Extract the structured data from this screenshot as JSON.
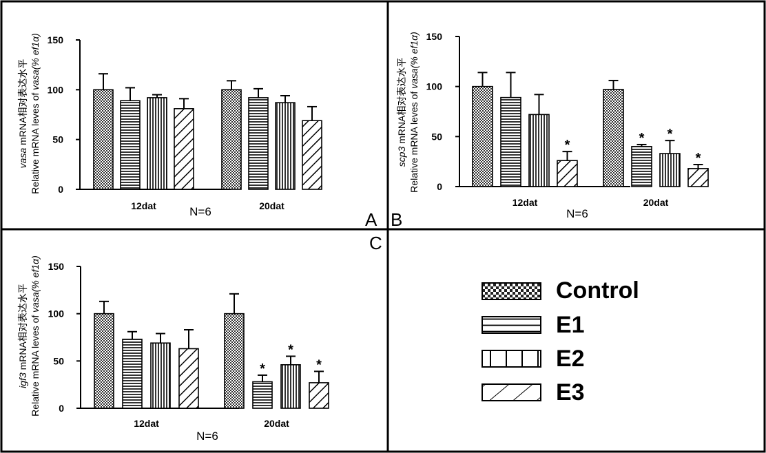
{
  "panels": [
    {
      "letter": "A",
      "chart_data": {
        "type": "bar",
        "categories": [
          "12dat",
          "20dat"
        ],
        "series": [
          {
            "name": "Control",
            "values": [
              100,
              100
            ],
            "errors": [
              16,
              9
            ]
          },
          {
            "name": "E1",
            "values": [
              89,
              92
            ],
            "errors": [
              13,
              9
            ]
          },
          {
            "name": "E2",
            "values": [
              92,
              87
            ],
            "errors": [
              3,
              7
            ]
          },
          {
            "name": "E3",
            "values": [
              81,
              69
            ],
            "errors": [
              10,
              14
            ]
          }
        ],
        "significance": [
          [
            false,
            false
          ],
          [
            false,
            false
          ],
          [
            false,
            false
          ],
          [
            false,
            false
          ]
        ],
        "ylabel_gene": "vasa",
        "ylabel_zh": "mRNA相对表达水平",
        "ylabel_en": "Relative mRNA leves of",
        "ylabel_gene2": "vasa",
        "ylabel_unit": "(% ef1α)",
        "n_label": "N=6",
        "ylim": [
          0,
          150
        ],
        "yticks": [
          0,
          50,
          100,
          150
        ]
      }
    },
    {
      "letter": "B",
      "chart_data": {
        "type": "bar",
        "categories": [
          "12dat",
          "20dat"
        ],
        "series": [
          {
            "name": "Control",
            "values": [
              100,
              97
            ],
            "errors": [
              14,
              9
            ]
          },
          {
            "name": "E1",
            "values": [
              89,
              40
            ],
            "errors": [
              25,
              2
            ]
          },
          {
            "name": "E2",
            "values": [
              72,
              33
            ],
            "errors": [
              20,
              13
            ]
          },
          {
            "name": "E3",
            "values": [
              26,
              18
            ],
            "errors": [
              9,
              4
            ]
          }
        ],
        "significance": [
          [
            false,
            false
          ],
          [
            false,
            true
          ],
          [
            false,
            true
          ],
          [
            true,
            true
          ]
        ],
        "ylabel_gene": "scp3",
        "ylabel_zh": "mRNA相对表达水平",
        "ylabel_en": "Relative mRNA leves of",
        "ylabel_gene2": "vasa",
        "ylabel_unit": "(% ef1α)",
        "n_label": "N=6",
        "ylim": [
          0,
          150
        ],
        "yticks": [
          0,
          50,
          100,
          150
        ]
      }
    },
    {
      "letter": "C",
      "chart_data": {
        "type": "bar",
        "categories": [
          "12dat",
          "20dat"
        ],
        "series": [
          {
            "name": "Control",
            "values": [
              100,
              100
            ],
            "errors": [
              13,
              21
            ]
          },
          {
            "name": "E1",
            "values": [
              73,
              28
            ],
            "errors": [
              8,
              7
            ]
          },
          {
            "name": "E2",
            "values": [
              69,
              46
            ],
            "errors": [
              10,
              9
            ]
          },
          {
            "name": "E3",
            "values": [
              63,
              27
            ],
            "errors": [
              20,
              12
            ]
          }
        ],
        "significance": [
          [
            false,
            false
          ],
          [
            false,
            true
          ],
          [
            false,
            true
          ],
          [
            false,
            true
          ]
        ],
        "ylabel_gene": "igf3",
        "ylabel_zh": "mRNA相对表达水平",
        "ylabel_en": "Relative mRNA leves of",
        "ylabel_gene2": "vasa",
        "ylabel_unit": "(% ef1α)",
        "n_label": "N=6",
        "ylim": [
          0,
          150
        ],
        "yticks": [
          0,
          50,
          100,
          150
        ]
      }
    }
  ],
  "legend": {
    "items": [
      {
        "label": "Control",
        "pattern": "checker"
      },
      {
        "label": "E1",
        "pattern": "hlines"
      },
      {
        "label": "E2",
        "pattern": "vlines"
      },
      {
        "label": "E3",
        "pattern": "diag"
      }
    ]
  },
  "significance_marker": "*"
}
